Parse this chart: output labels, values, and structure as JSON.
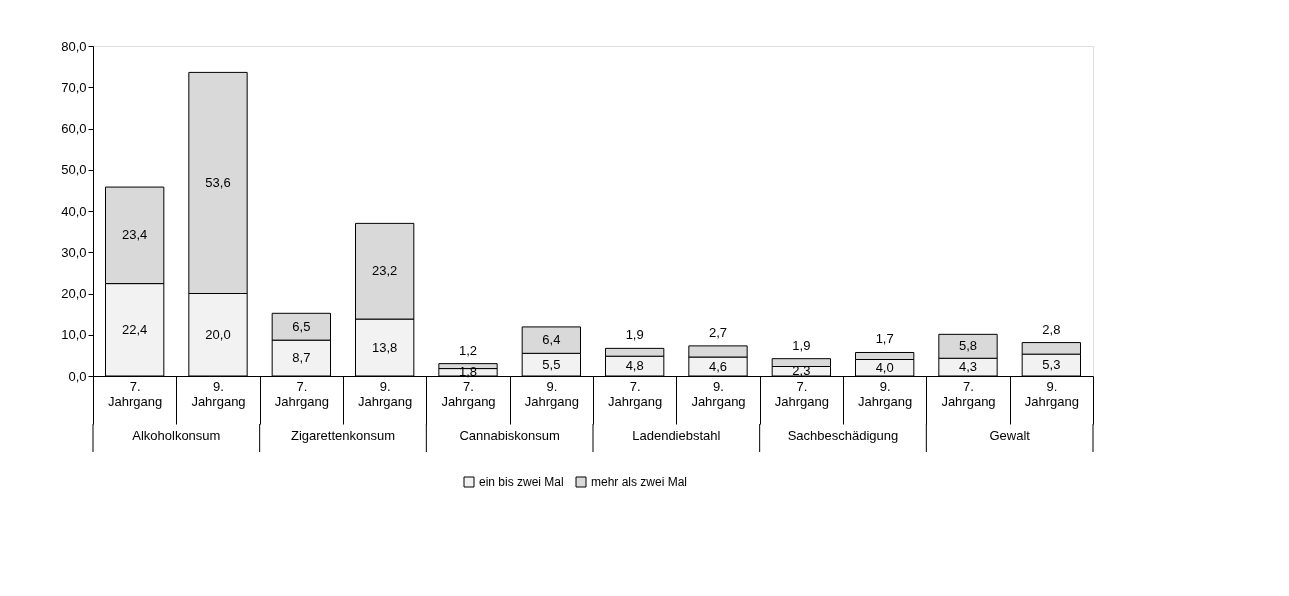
{
  "chart_data": {
    "type": "bar",
    "stacked": true,
    "categories": [
      "7. Jahrgang",
      "9. Jahrgang",
      "7. Jahrgang",
      "9. Jahrgang",
      "7. Jahrgang",
      "9. Jahrgang",
      "7. Jahrgang",
      "9. Jahrgang",
      "7. Jahrgang",
      "9. Jahrgang",
      "7. Jahrgang",
      "9. Jahrgang"
    ],
    "annotations": [
      "Alkoholkonsum",
      "Zigarettenkonsum",
      "Cannabiskonsum",
      "Ladendiebstahl",
      "Sachbeschädigung",
      "Gewalt"
    ],
    "series": [
      {
        "name": "ein bis zwei Mal",
        "color": "#f2f2f2",
        "values": [
          22.4,
          20.0,
          8.7,
          13.8,
          1.8,
          5.5,
          4.8,
          4.6,
          2.3,
          4.0,
          4.3,
          5.3
        ],
        "value_labels": [
          "22,4",
          "20,0",
          "8,7",
          "13,8",
          "1,8",
          "5,5",
          "4,8",
          "4,6",
          "2,3",
          "4,0",
          "4,3",
          "5,3"
        ]
      },
      {
        "name": "mehr als zwei Mal",
        "color": "#d9d9d9",
        "values": [
          23.4,
          53.6,
          6.5,
          23.2,
          1.2,
          6.4,
          1.9,
          2.7,
          1.9,
          1.7,
          5.8,
          2.8
        ],
        "value_labels": [
          "23,4",
          "53,6",
          "6,5",
          "23,2",
          "1,2",
          "6,4",
          "1,9",
          "2,7",
          "1,9",
          "1,7",
          "5,8",
          "2,8"
        ]
      }
    ],
    "ylim": [
      0,
      80
    ],
    "yticks": [
      {
        "value": 0,
        "label": "0,0"
      },
      {
        "value": 10,
        "label": "10,0"
      },
      {
        "value": 20,
        "label": "20,0"
      },
      {
        "value": 30,
        "label": "30,0"
      },
      {
        "value": 40,
        "label": "40,0"
      },
      {
        "value": 50,
        "label": "50,0"
      },
      {
        "value": 60,
        "label": "60,0"
      },
      {
        "value": 70,
        "label": "70,0"
      },
      {
        "value": 80,
        "label": "80,0"
      }
    ],
    "grid": false,
    "legend": "bottom"
  }
}
